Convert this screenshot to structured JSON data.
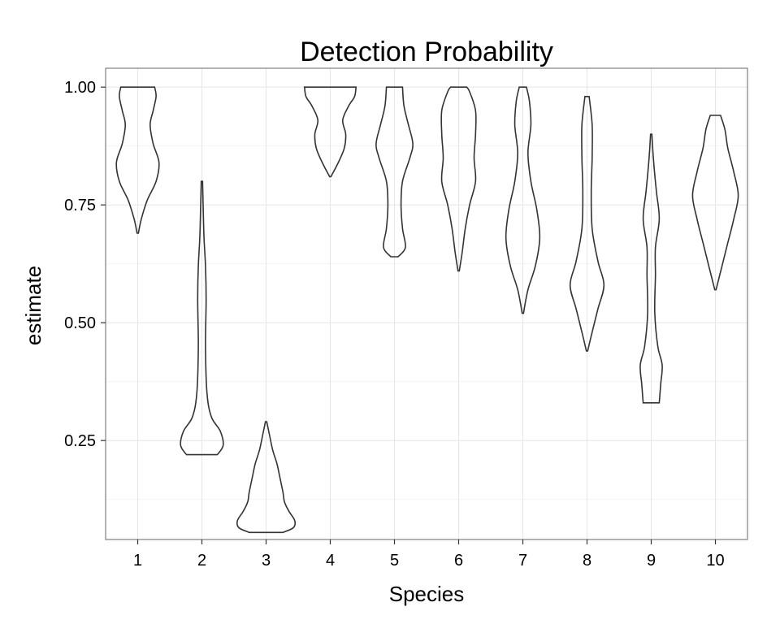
{
  "chart_data": {
    "type": "violin",
    "title": "Detection Probability",
    "xlabel": "Species",
    "ylabel": "estimate",
    "categories": [
      "1",
      "2",
      "3",
      "4",
      "5",
      "6",
      "7",
      "8",
      "9",
      "10"
    ],
    "yticks": [
      0.25,
      0.5,
      0.75,
      1.0
    ],
    "ytick_labels": [
      "0.25",
      "0.50",
      "0.75",
      "1.00"
    ],
    "ylim": [
      0.04,
      1.04
    ],
    "grid": true,
    "violins": [
      {
        "species": "1",
        "density": [
          [
            0.69,
            0.0
          ],
          [
            0.72,
            0.1
          ],
          [
            0.76,
            0.3
          ],
          [
            0.8,
            0.6
          ],
          [
            0.84,
            0.7
          ],
          [
            0.88,
            0.5
          ],
          [
            0.92,
            0.4
          ],
          [
            0.95,
            0.5
          ],
          [
            0.98,
            0.6
          ],
          [
            1.0,
            0.55
          ]
        ]
      },
      {
        "species": "2",
        "density": [
          [
            0.22,
            0.5
          ],
          [
            0.24,
            0.7
          ],
          [
            0.27,
            0.6
          ],
          [
            0.3,
            0.3
          ],
          [
            0.35,
            0.15
          ],
          [
            0.45,
            0.1
          ],
          [
            0.55,
            0.12
          ],
          [
            0.62,
            0.1
          ],
          [
            0.68,
            0.05
          ],
          [
            0.75,
            0.02
          ],
          [
            0.8,
            0.0
          ]
        ]
      },
      {
        "species": "3",
        "density": [
          [
            0.055,
            0.55
          ],
          [
            0.065,
            0.9
          ],
          [
            0.08,
            0.95
          ],
          [
            0.1,
            0.75
          ],
          [
            0.12,
            0.6
          ],
          [
            0.14,
            0.55
          ],
          [
            0.17,
            0.45
          ],
          [
            0.2,
            0.35
          ],
          [
            0.23,
            0.2
          ],
          [
            0.26,
            0.1
          ],
          [
            0.29,
            0.0
          ]
        ]
      },
      {
        "species": "4",
        "density": [
          [
            0.81,
            0.0
          ],
          [
            0.84,
            0.25
          ],
          [
            0.87,
            0.45
          ],
          [
            0.9,
            0.5
          ],
          [
            0.93,
            0.4
          ],
          [
            0.96,
            0.6
          ],
          [
            0.98,
            0.8
          ],
          [
            1.0,
            0.85
          ]
        ]
      },
      {
        "species": "5",
        "density": [
          [
            0.64,
            0.1
          ],
          [
            0.66,
            0.35
          ],
          [
            0.7,
            0.25
          ],
          [
            0.75,
            0.2
          ],
          [
            0.8,
            0.25
          ],
          [
            0.85,
            0.5
          ],
          [
            0.88,
            0.6
          ],
          [
            0.92,
            0.45
          ],
          [
            0.96,
            0.3
          ],
          [
            1.0,
            0.25
          ]
        ]
      },
      {
        "species": "6",
        "density": [
          [
            0.61,
            0.0
          ],
          [
            0.65,
            0.1
          ],
          [
            0.7,
            0.2
          ],
          [
            0.75,
            0.35
          ],
          [
            0.8,
            0.55
          ],
          [
            0.85,
            0.5
          ],
          [
            0.9,
            0.55
          ],
          [
            0.95,
            0.55
          ],
          [
            0.99,
            0.35
          ],
          [
            1.0,
            0.25
          ]
        ]
      },
      {
        "species": "7",
        "density": [
          [
            0.52,
            0.0
          ],
          [
            0.57,
            0.15
          ],
          [
            0.62,
            0.4
          ],
          [
            0.68,
            0.55
          ],
          [
            0.74,
            0.45
          ],
          [
            0.8,
            0.25
          ],
          [
            0.86,
            0.15
          ],
          [
            0.92,
            0.25
          ],
          [
            0.97,
            0.2
          ],
          [
            1.0,
            0.1
          ]
        ]
      },
      {
        "species": "8",
        "density": [
          [
            0.44,
            0.0
          ],
          [
            0.48,
            0.15
          ],
          [
            0.53,
            0.35
          ],
          [
            0.58,
            0.55
          ],
          [
            0.63,
            0.35
          ],
          [
            0.7,
            0.15
          ],
          [
            0.78,
            0.12
          ],
          [
            0.85,
            0.15
          ],
          [
            0.92,
            0.15
          ],
          [
            0.98,
            0.05
          ]
        ]
      },
      {
        "species": "9",
        "density": [
          [
            0.33,
            0.25
          ],
          [
            0.37,
            0.3
          ],
          [
            0.41,
            0.35
          ],
          [
            0.45,
            0.2
          ],
          [
            0.52,
            0.1
          ],
          [
            0.6,
            0.12
          ],
          [
            0.66,
            0.12
          ],
          [
            0.72,
            0.25
          ],
          [
            0.78,
            0.15
          ],
          [
            0.85,
            0.05
          ],
          [
            0.9,
            0.0
          ]
        ]
      },
      {
        "species": "10",
        "density": [
          [
            0.57,
            0.0
          ],
          [
            0.62,
            0.2
          ],
          [
            0.67,
            0.4
          ],
          [
            0.72,
            0.6
          ],
          [
            0.77,
            0.75
          ],
          [
            0.82,
            0.6
          ],
          [
            0.87,
            0.4
          ],
          [
            0.91,
            0.3
          ],
          [
            0.94,
            0.15
          ]
        ]
      }
    ]
  }
}
